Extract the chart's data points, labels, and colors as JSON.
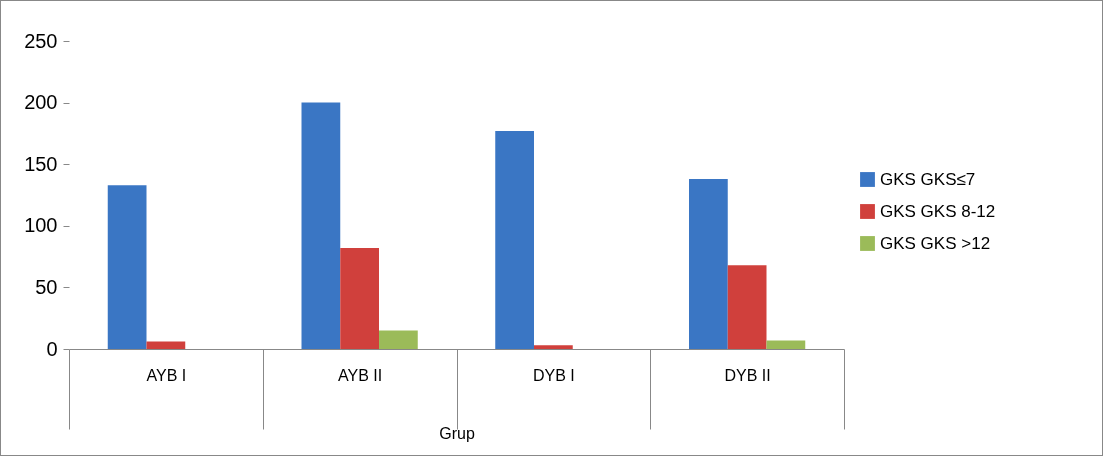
{
  "chart_data": {
    "type": "bar",
    "categories": [
      "AYB I",
      "AYB II",
      "DYB I",
      "DYB II"
    ],
    "xlabel": "Grup",
    "series": [
      {
        "name": "GKS GKS≤7",
        "color": "#3a76c4",
        "values": [
          133,
          200,
          177,
          138
        ]
      },
      {
        "name": "GKS GKS 8-12",
        "color": "#d0403c",
        "values": [
          6,
          82,
          3,
          68
        ]
      },
      {
        "name": "GKS GKS >12",
        "color": "#9bbb59",
        "values": [
          0,
          15,
          0,
          7
        ]
      }
    ],
    "ylim": [
      0,
      250
    ],
    "yticks": [
      0,
      50,
      100,
      150,
      200,
      250
    ],
    "grid": false,
    "legend": "right"
  }
}
